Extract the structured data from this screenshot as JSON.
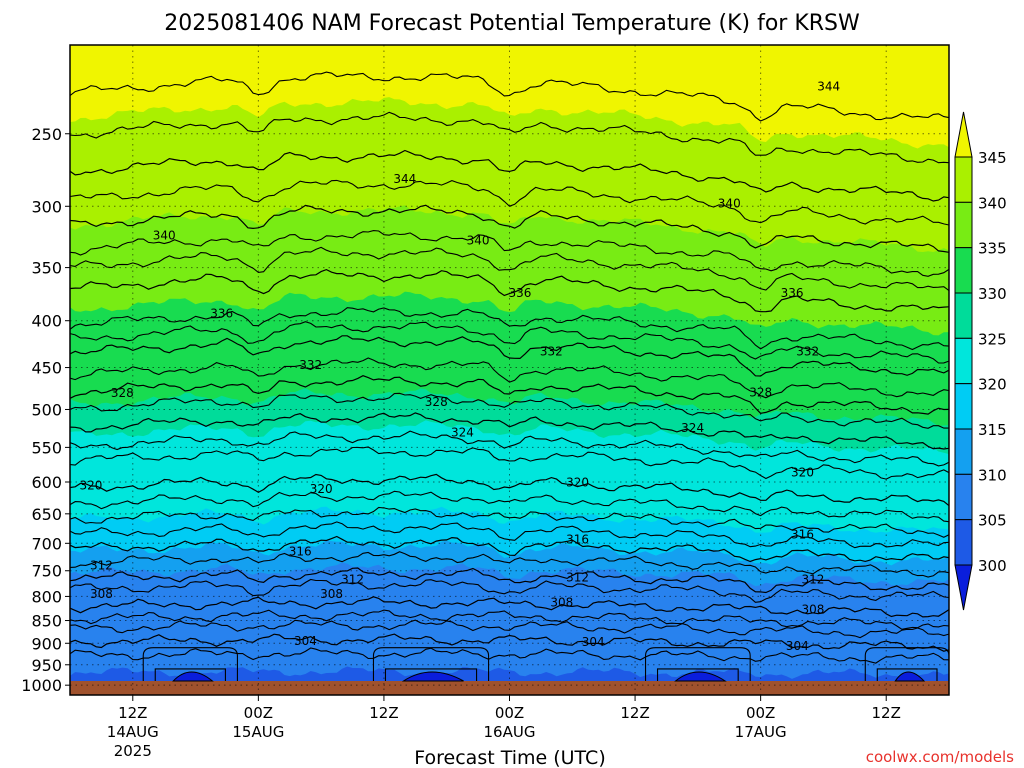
{
  "chart_data": {
    "type": "heatmap",
    "title": "2025081406 NAM Forecast Potential Temperature (K) for KRSW",
    "xlabel": "Forecast Time (UTC)",
    "y_ticks": [
      250,
      300,
      350,
      400,
      450,
      500,
      550,
      600,
      650,
      700,
      750,
      800,
      850,
      900,
      950,
      1000
    ],
    "ylim": [
      200,
      1025
    ],
    "x_ticks": [
      {
        "hour": 6,
        "label": "12Z",
        "date": "14AUG",
        "year": "2025"
      },
      {
        "hour": 18,
        "label": "00Z",
        "date": "15AUG",
        "year": ""
      },
      {
        "hour": 30,
        "label": "12Z",
        "date": "",
        "year": ""
      },
      {
        "hour": 42,
        "label": "00Z",
        "date": "16AUG",
        "year": ""
      },
      {
        "hour": 54,
        "label": "12Z",
        "date": "",
        "year": ""
      },
      {
        "hour": 66,
        "label": "00Z",
        "date": "17AUG",
        "year": ""
      },
      {
        "hour": 78,
        "label": "12Z",
        "date": "",
        "year": ""
      }
    ],
    "xlim": [
      0,
      84
    ],
    "colorbar": {
      "levels": [
        300,
        305,
        310,
        315,
        320,
        325,
        330,
        335,
        340,
        345
      ],
      "colors": [
        "#0a1edc",
        "#1e5ae6",
        "#2882ee",
        "#14a0f0",
        "#00ccf4",
        "#00e6dc",
        "#00dc9a",
        "#18dc50",
        "#78ec14",
        "#aaf000",
        "#f0f500"
      ]
    },
    "contours": [
      {
        "level": 304,
        "pressure": 900,
        "labeled": true
      },
      {
        "level": 308,
        "pressure": 825,
        "labeled": true
      },
      {
        "level": 312,
        "pressure": 770,
        "labeled": true
      },
      {
        "level": 316,
        "pressure": 715,
        "labeled": true
      },
      {
        "level": 320,
        "pressure": 615,
        "labeled": true
      },
      {
        "level": 324,
        "pressure": 530,
        "labeled": true
      },
      {
        "level": 328,
        "pressure": 485,
        "labeled": true
      },
      {
        "level": 332,
        "pressure": 440,
        "labeled": true
      },
      {
        "level": 336,
        "pressure": 375,
        "labeled": true
      },
      {
        "level": 340,
        "pressure": 320,
        "labeled": true
      },
      {
        "level": 344,
        "pressure": 280,
        "labeled": true
      }
    ],
    "contour_labels": [
      {
        "text": "344",
        "hour": 72.5,
        "p": 222
      },
      {
        "text": "344",
        "hour": 32,
        "p": 280
      },
      {
        "text": "340",
        "hour": 9,
        "p": 323
      },
      {
        "text": "340",
        "hour": 39,
        "p": 327
      },
      {
        "text": "340",
        "hour": 63,
        "p": 298
      },
      {
        "text": "336",
        "hour": 14.5,
        "p": 393
      },
      {
        "text": "336",
        "hour": 43,
        "p": 373
      },
      {
        "text": "336",
        "hour": 69,
        "p": 373
      },
      {
        "text": "332",
        "hour": 23,
        "p": 447
      },
      {
        "text": "332",
        "hour": 46,
        "p": 432
      },
      {
        "text": "332",
        "hour": 70.5,
        "p": 432
      },
      {
        "text": "328",
        "hour": 5,
        "p": 480
      },
      {
        "text": "328",
        "hour": 35,
        "p": 491
      },
      {
        "text": "328",
        "hour": 66,
        "p": 479
      },
      {
        "text": "324",
        "hour": 37.5,
        "p": 530
      },
      {
        "text": "324",
        "hour": 59.5,
        "p": 524
      },
      {
        "text": "320",
        "hour": 2,
        "p": 605
      },
      {
        "text": "320",
        "hour": 24,
        "p": 611
      },
      {
        "text": "320",
        "hour": 48.5,
        "p": 601
      },
      {
        "text": "320",
        "hour": 70,
        "p": 586
      },
      {
        "text": "316",
        "hour": 22,
        "p": 715
      },
      {
        "text": "316",
        "hour": 48.5,
        "p": 693
      },
      {
        "text": "316",
        "hour": 70,
        "p": 685
      },
      {
        "text": "312",
        "hour": 3,
        "p": 740
      },
      {
        "text": "312",
        "hour": 27,
        "p": 767
      },
      {
        "text": "312",
        "hour": 48.5,
        "p": 763
      },
      {
        "text": "312",
        "hour": 71,
        "p": 767
      },
      {
        "text": "308",
        "hour": 3,
        "p": 795
      },
      {
        "text": "308",
        "hour": 25,
        "p": 795
      },
      {
        "text": "308",
        "hour": 47,
        "p": 812
      },
      {
        "text": "308",
        "hour": 71,
        "p": 827
      },
      {
        "text": "304",
        "hour": 22.5,
        "p": 895
      },
      {
        "text": "304",
        "hour": 50,
        "p": 897
      },
      {
        "text": "304",
        "hour": 69.5,
        "p": 906
      }
    ]
  },
  "credit": "coolwx.com/models"
}
